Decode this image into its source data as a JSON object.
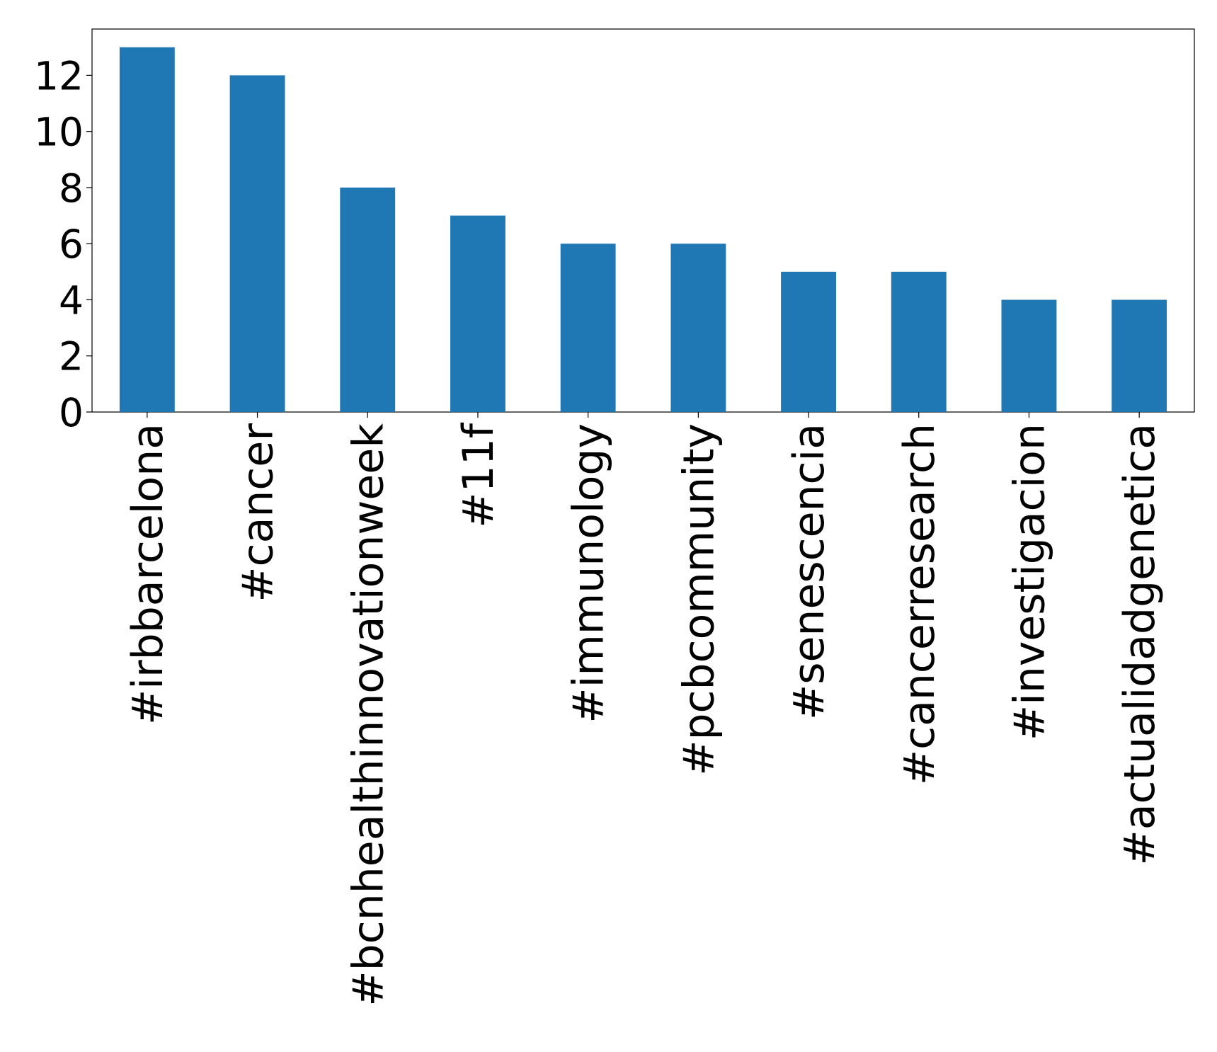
{
  "chart_data": {
    "type": "bar",
    "categories": [
      "#irbbarcelona",
      "#cancer",
      "#bcnhealthinnovationweek",
      "#11f",
      "#immunology",
      "#pcbcommunity",
      "#senescencia",
      "#cancerresearch",
      "#investigacion",
      "#actualidadgenetica"
    ],
    "values": [
      13,
      12,
      8,
      7,
      6,
      6,
      5,
      5,
      4,
      4
    ],
    "color": "#1f77b4",
    "ylim": [
      0,
      13.65
    ],
    "yticks": [
      0,
      2,
      4,
      6,
      8,
      10,
      12
    ],
    "grid": false
  }
}
